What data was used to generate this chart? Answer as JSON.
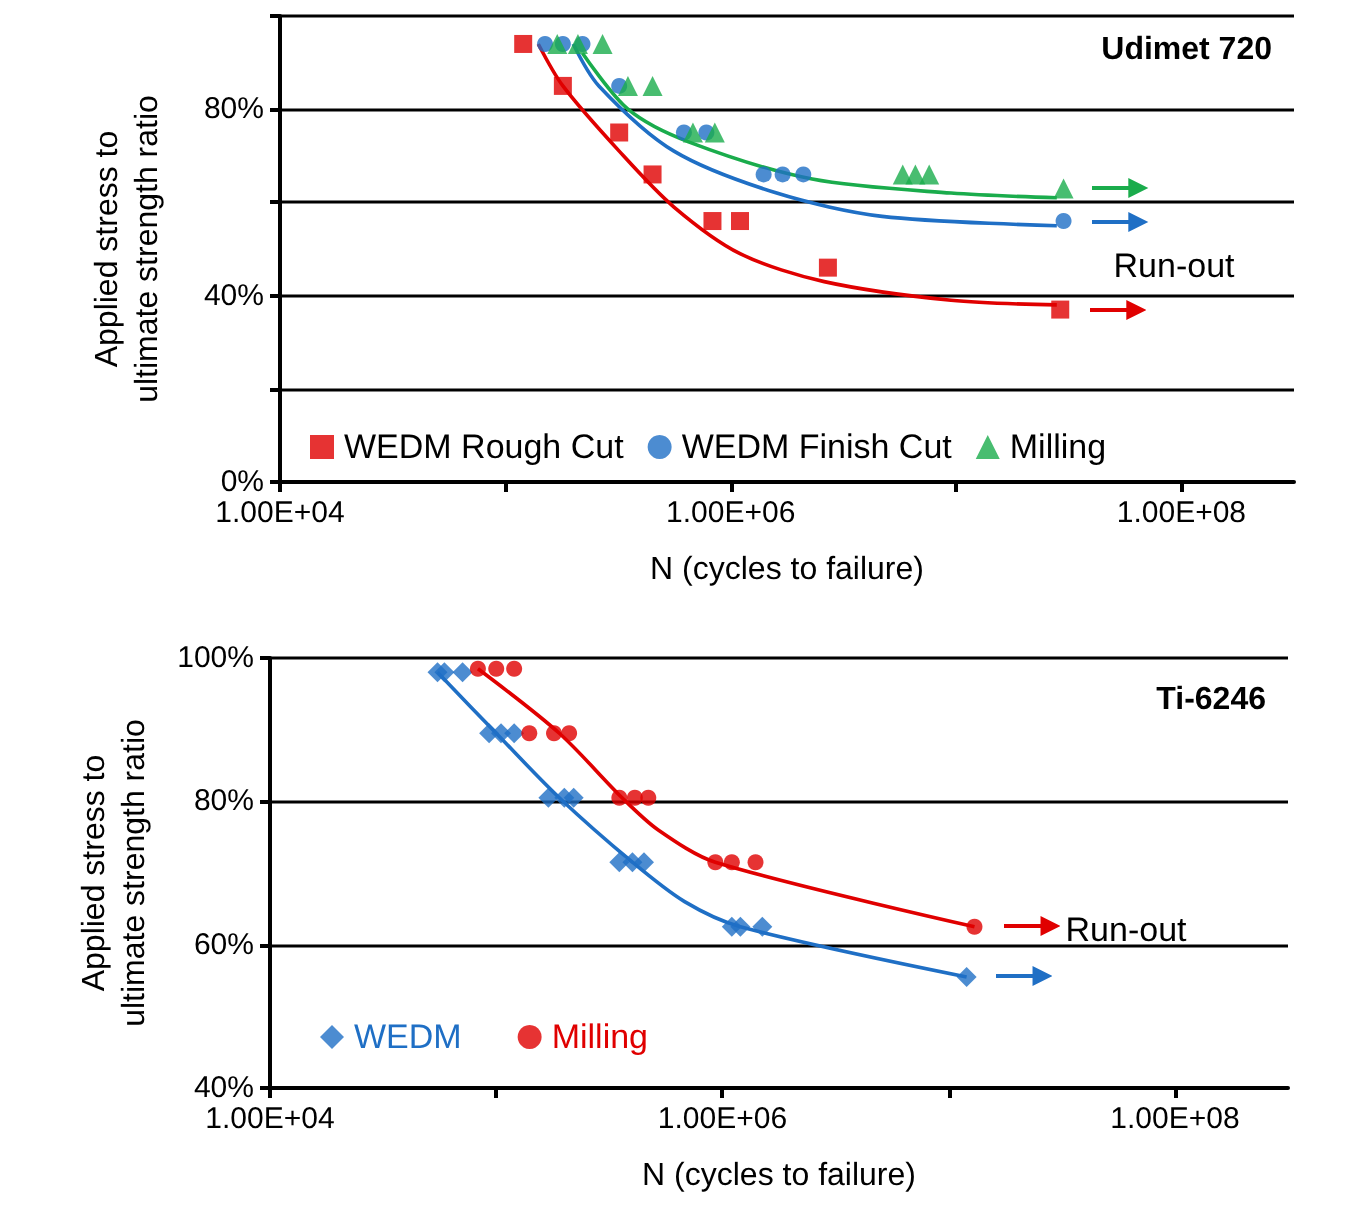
{
  "chart_data": [
    {
      "type": "scatter",
      "title": "Udimet 720",
      "xlabel": "N (cycles to failure)",
      "ylabel": "Applied stress to ultimate strength ratio",
      "log": "x",
      "grid": "y",
      "legend": "bottom",
      "xlim": [
        10000,
        316000000
      ],
      "xticks": [
        {
          "value": 10000,
          "label": "1.00E+04"
        },
        {
          "value": 100000,
          "label": null
        },
        {
          "value": 1000000,
          "label": "1.00E+06"
        },
        {
          "value": 10000000,
          "label": null
        },
        {
          "value": 100000000,
          "label": "1.00E+08"
        }
      ],
      "ylim": [
        0,
        100
      ],
      "yticks": [
        {
          "value": 0,
          "label": "0%"
        },
        {
          "value": 20,
          "label": null
        },
        {
          "value": 40,
          "label": "40%"
        },
        {
          "value": 60,
          "label": null
        },
        {
          "value": 80,
          "label": "80%"
        },
        {
          "value": 100,
          "label": null
        }
      ],
      "annotations": [
        "Run-out"
      ],
      "series": [
        {
          "name": "WEDM Rough Cut",
          "marker": "square",
          "color": "#e00000",
          "x": [
            120000,
            180000,
            320000,
            450000,
            830000,
            1100000,
            2700000,
            29000000
          ],
          "values": [
            94,
            85,
            75,
            66,
            56,
            56,
            46,
            37
          ]
        },
        {
          "name": "WEDM Finish Cut",
          "marker": "circle",
          "color": "#1f6fc5",
          "x": [
            150000,
            180000,
            220000,
            320000,
            620000,
            780000,
            1400000,
            1700000,
            2100000,
            30000000
          ],
          "values": [
            94,
            94,
            94,
            85,
            75,
            75,
            66,
            66,
            66,
            56
          ]
        },
        {
          "name": "Milling",
          "marker": "triangle",
          "color": "#1aac4c",
          "x": [
            170000,
            210000,
            270000,
            350000,
            450000,
            680000,
            850000,
            5800000,
            6600000,
            7600000,
            30000000
          ],
          "values": [
            94,
            94,
            94,
            85,
            85,
            75,
            75,
            66,
            66,
            66,
            63
          ]
        },
        {
          "type": "line",
          "marker": "none",
          "color": "#e00000",
          "x": [
            140000,
            180000,
            320000,
            560000,
            1100000,
            2600000,
            9500000,
            28000000
          ],
          "values": [
            94,
            85,
            71,
            59,
            49,
            43,
            39,
            38
          ]
        },
        {
          "type": "line",
          "marker": "none",
          "color": "#1f6fc5",
          "x": [
            200000,
            260000,
            560000,
            1600000,
            4700000,
            28000000
          ],
          "values": [
            94,
            85,
            71,
            62,
            57,
            55
          ]
        },
        {
          "type": "line",
          "marker": "none",
          "color": "#1aac4c",
          "x": [
            220000,
            350000,
            650000,
            2300000,
            9500000,
            28000000
          ],
          "values": [
            92,
            80,
            73,
            65,
            62,
            61
          ]
        }
      ]
    },
    {
      "type": "scatter",
      "title": "Ti-6246",
      "xlabel": "N (cycles to failure)",
      "ylabel": "Applied stress to ultimate strength ratio",
      "log": "x",
      "grid": "y",
      "legend": "bottom left",
      "xlim": [
        10000,
        316000000
      ],
      "xticks": [
        {
          "value": 10000,
          "label": "1.00E+04"
        },
        {
          "value": 100000,
          "label": null
        },
        {
          "value": 1000000,
          "label": "1.00E+06"
        },
        {
          "value": 10000000,
          "label": null
        },
        {
          "value": 100000000,
          "label": "1.00E+08"
        }
      ],
      "ylim": [
        40,
        100
      ],
      "yticks": [
        {
          "value": 40,
          "label": "40%"
        },
        {
          "value": 60,
          "label": "60%"
        },
        {
          "value": 80,
          "label": "80%"
        },
        {
          "value": 100,
          "label": "100%"
        }
      ],
      "annotations": [
        "Run-out"
      ],
      "series": [
        {
          "name": "WEDM",
          "marker": "diamond",
          "color": "#1f6fc5",
          "x": [
            55000,
            59000,
            71000,
            93000,
            105000,
            120000,
            170000,
            200000,
            220000,
            350000,
            400000,
            450000,
            1100000,
            1200000,
            1500000,
            12000000
          ],
          "values": [
            98,
            98,
            98,
            89.5,
            89.5,
            89.5,
            80.5,
            80.5,
            80.5,
            71.5,
            71.5,
            71.5,
            62.5,
            62.5,
            62.5,
            55.5
          ]
        },
        {
          "name": "Milling",
          "marker": "circle",
          "color": "#e00000",
          "x": [
            83000,
            100000,
            120000,
            140000,
            180000,
            210000,
            350000,
            410000,
            470000,
            930000,
            1100000,
            1400000,
            13000000
          ],
          "values": [
            98.5,
            98.5,
            98.5,
            89.5,
            89.5,
            89.5,
            80.5,
            80.5,
            80.5,
            71.5,
            71.5,
            71.5,
            62.5
          ]
        },
        {
          "type": "line",
          "marker": "none",
          "color": "#1f6fc5",
          "x": [
            55000,
            100000,
            190000,
            400000,
            680000,
            1200000,
            12000000
          ],
          "values": [
            98,
            89.5,
            80.5,
            71.5,
            66,
            62.5,
            55.5
          ]
        },
        {
          "type": "line",
          "marker": "none",
          "color": "#e00000",
          "x": [
            83000,
            190000,
            360000,
            520000,
            930000,
            13000000
          ],
          "values": [
            98.5,
            89.5,
            80.5,
            76,
            71.5,
            62.5
          ]
        }
      ]
    }
  ]
}
